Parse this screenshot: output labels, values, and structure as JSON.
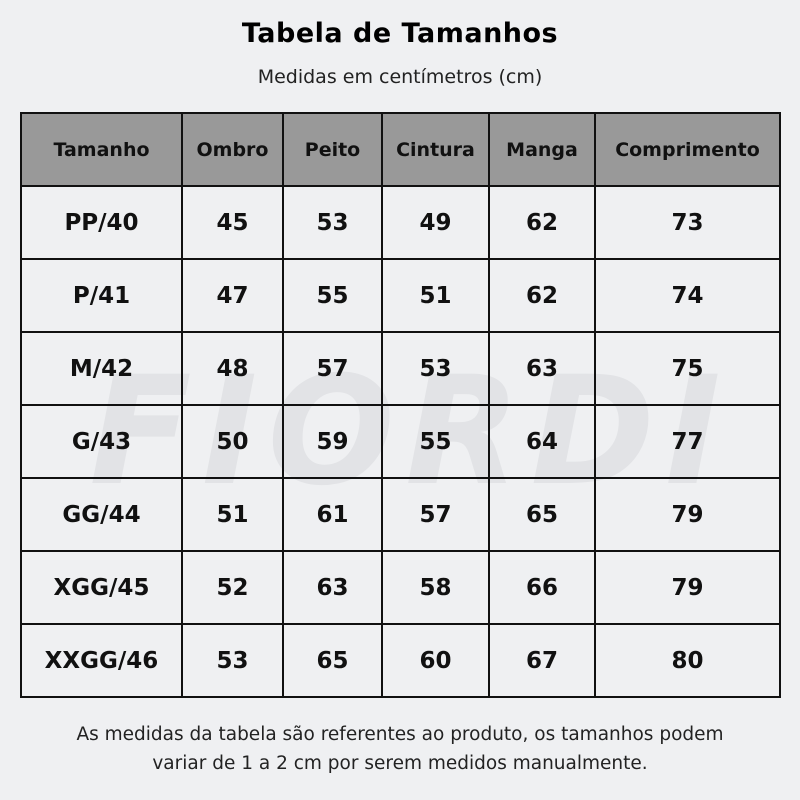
{
  "title": "Tabela de Tamanhos",
  "subtitle": "Medidas em centímetros (cm)",
  "watermark": "FIORDI",
  "table": {
    "headers": [
      "Tamanho",
      "Ombro",
      "Peito",
      "Cintura",
      "Manga",
      "Comprimento"
    ],
    "rows": [
      [
        "PP/40",
        "45",
        "53",
        "49",
        "62",
        "73"
      ],
      [
        "P/41",
        "47",
        "55",
        "51",
        "62",
        "74"
      ],
      [
        "M/42",
        "48",
        "57",
        "53",
        "63",
        "75"
      ],
      [
        "G/43",
        "50",
        "59",
        "55",
        "64",
        "77"
      ],
      [
        "GG/44",
        "51",
        "61",
        "57",
        "65",
        "79"
      ],
      [
        "XGG/45",
        "52",
        "63",
        "58",
        "66",
        "79"
      ],
      [
        "XXGG/46",
        "53",
        "65",
        "60",
        "67",
        "80"
      ]
    ]
  },
  "footer": {
    "line1": "As medidas da tabela são referentes ao produto, os tamanhos podem",
    "line2": "variar de 1 a 2 cm por serem medidos manualmente."
  },
  "colors": {
    "background": "#eff0f2",
    "header": "#999999",
    "border": "#111111"
  }
}
